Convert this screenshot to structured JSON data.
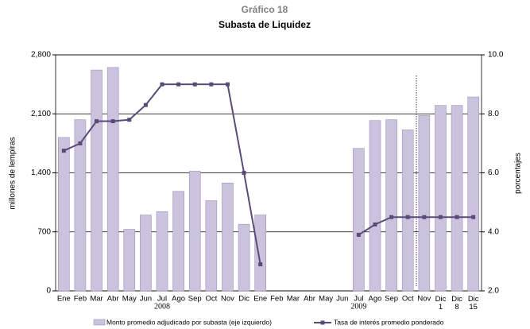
{
  "chart_data": {
    "type": "bar-line",
    "title": "Gráfico 18",
    "subtitle": "Subasta de Liquidez",
    "y_label": "millones de lempiras",
    "y2_label": "porcentajes",
    "annotations": [
      "2008",
      "2009"
    ],
    "categories": [
      "Ene",
      "Feb",
      "Mar",
      "Abr",
      "May",
      "Jun",
      "Jul",
      "Ago",
      "Sep",
      "Oct",
      "Nov",
      "Dic",
      "Ene",
      "Feb",
      "Mar",
      "Abr",
      "May",
      "Jun",
      "Jul",
      "Ago",
      "Sep",
      "Oct",
      "Nov",
      "Dic 1",
      "Dic 8",
      "Dic 15"
    ],
    "series": [
      {
        "name": "Monto promedio adjudicado por subasta (eje izquierdo)",
        "type": "bar",
        "color": "#cbc2dd",
        "values": [
          1820,
          2030,
          2620,
          2650,
          730,
          900,
          940,
          1180,
          1420,
          1070,
          1280,
          790,
          900,
          null,
          null,
          null,
          null,
          null,
          1690,
          2020,
          2030,
          1910,
          2080,
          2200,
          2200,
          2300
        ]
      },
      {
        "name": "Tasa de interés promedio ponderado",
        "type": "line",
        "axis": "y2",
        "color": "#5a4a78",
        "values": [
          6.75,
          7.0,
          7.75,
          7.75,
          7.8,
          8.3,
          9.0,
          9.0,
          9.0,
          9.0,
          9.0,
          6.0,
          2.9,
          null,
          null,
          null,
          null,
          null,
          3.9,
          4.25,
          4.5,
          4.5,
          4.5,
          4.5,
          4.5,
          4.5
        ]
      }
    ],
    "ylim": [
      0,
      2800
    ],
    "yticks": [
      0,
      700,
      {
        "value": 1400,
        "label": "1,400"
      },
      {
        "value": 2100,
        "label": "2,100"
      },
      {
        "value": 2800,
        "label": "2,800"
      }
    ],
    "y2lim": [
      2,
      10
    ],
    "y2ticks": [
      {
        "value": 2,
        "label": "2.0"
      },
      {
        "value": 4,
        "label": "4.0"
      },
      {
        "value": 6,
        "label": "6.0"
      },
      {
        "value": 8,
        "label": "8.0"
      },
      {
        "value": 10,
        "label": "10.0"
      }
    ],
    "grid": true,
    "legend": "bottom"
  }
}
